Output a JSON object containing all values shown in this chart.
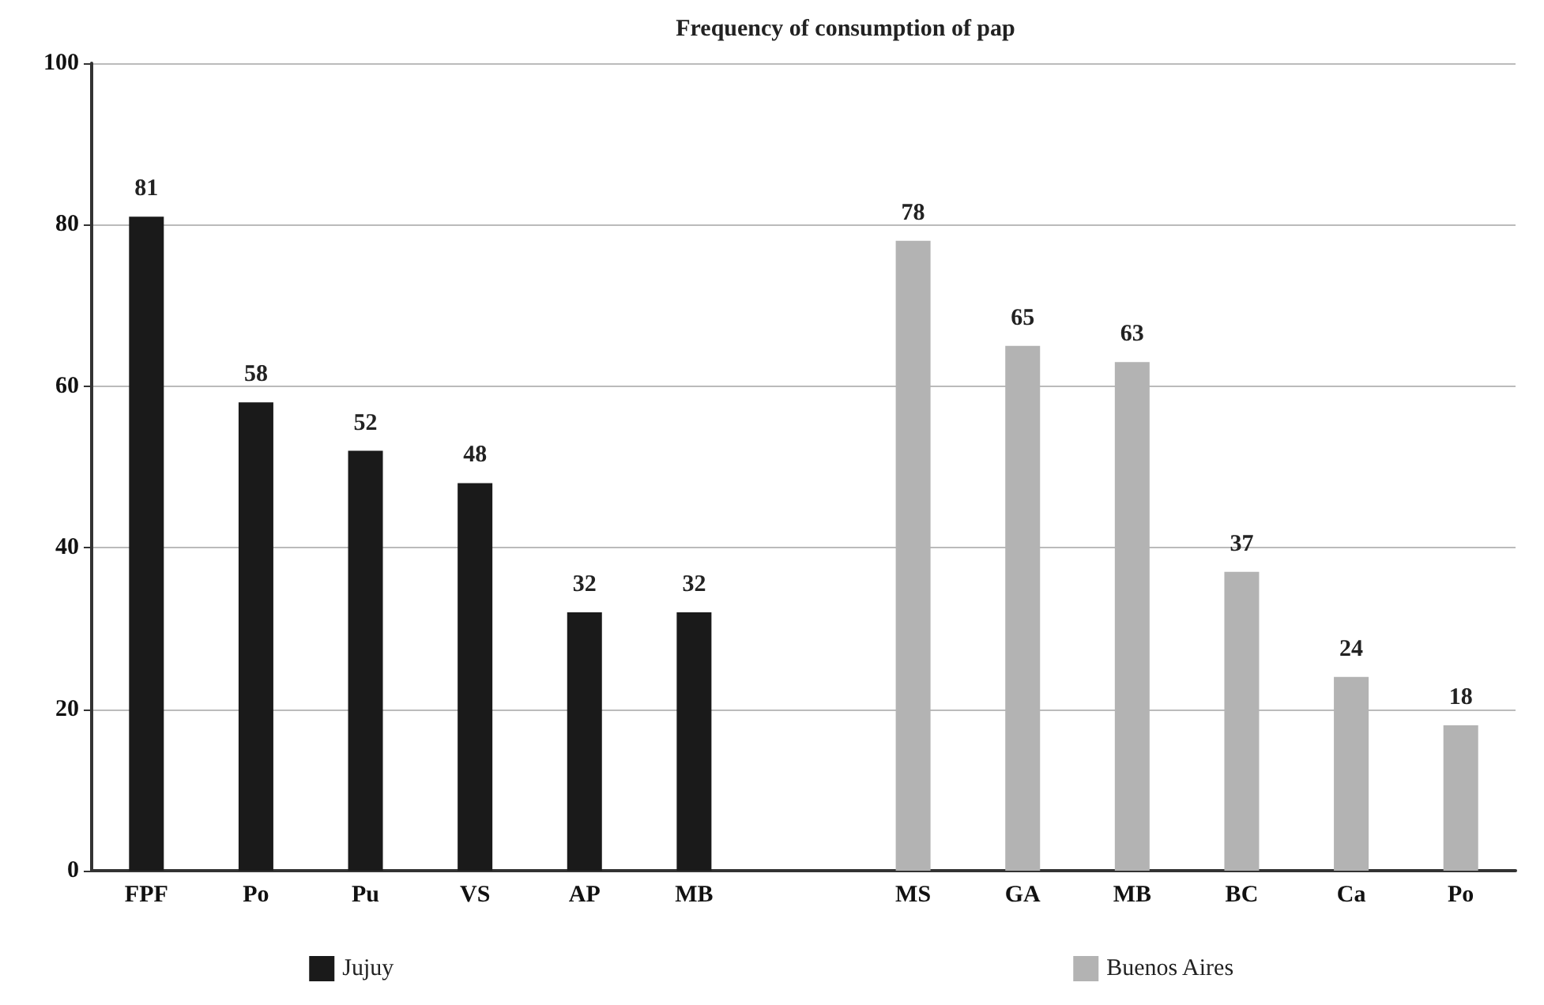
{
  "chart_data": {
    "type": "bar",
    "title": "Frequency of consumption of pap",
    "categories": [
      "FPF",
      "Po",
      "Pu",
      "VS",
      "AP",
      "MB",
      null,
      "MS",
      "GA",
      "MB",
      "BC",
      "Ca",
      "Po"
    ],
    "series": [
      {
        "name": "Jujuy",
        "color": "#1a1a1a",
        "values": [
          81,
          58,
          52,
          48,
          32,
          32,
          null,
          null,
          null,
          null,
          null,
          null,
          null
        ]
      },
      {
        "name": "Buenos Aires",
        "color": "#b3b3b3",
        "values": [
          null,
          null,
          null,
          null,
          null,
          null,
          null,
          78,
          65,
          63,
          37,
          24,
          18
        ]
      }
    ],
    "ylim": [
      0,
      100
    ],
    "yticks": [
      0,
      20,
      40,
      60,
      80,
      100
    ],
    "grid": "y",
    "legend": "bottom",
    "data_labels": true
  }
}
